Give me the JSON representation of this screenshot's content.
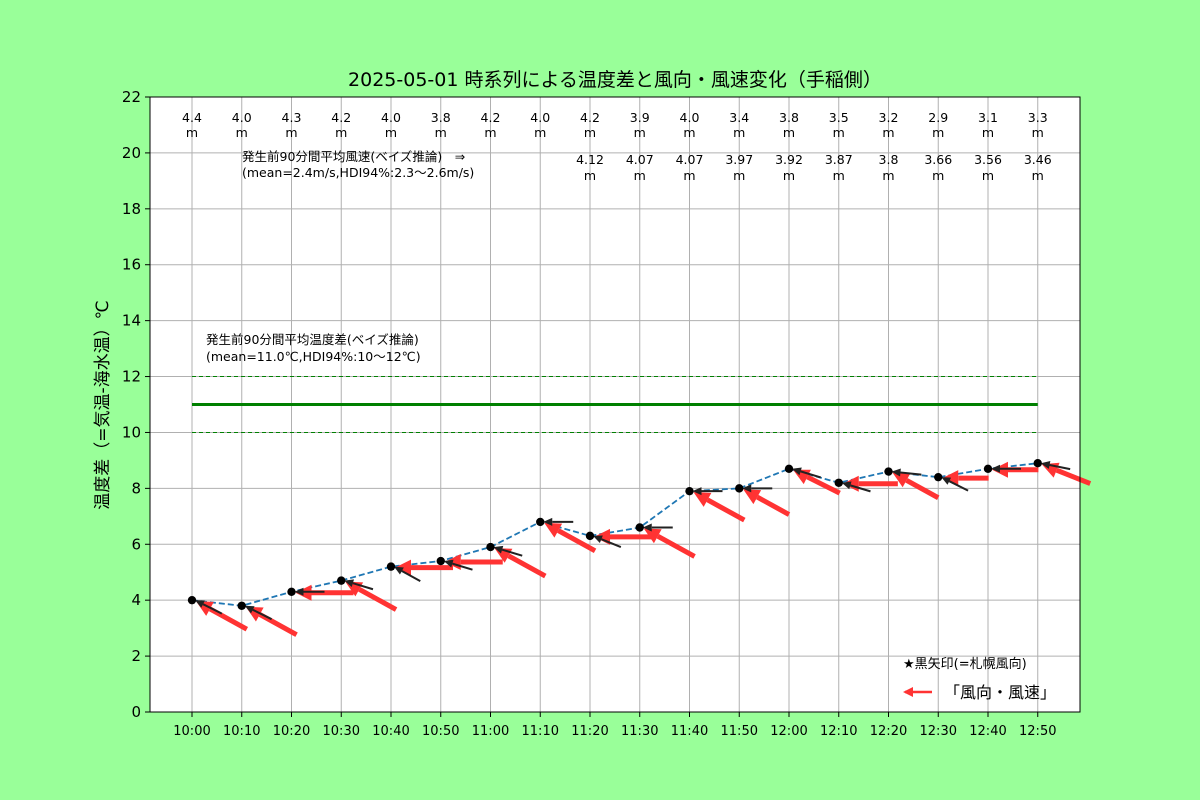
{
  "colors": {
    "background": "#99ff99",
    "plot_background": "#ffffff",
    "grid": "#b0b0b0",
    "temperature_line": "#1f77b4",
    "mean_line": "#008000",
    "wind_arrow": "#ff3333",
    "sapporo_arrow": "#222222"
  },
  "chart_data": {
    "type": "line",
    "title": "2025-05-01 時系列による温度差と風向・風速変化（手稲側）",
    "ylabel": "温度差（=気温-海水温）℃",
    "xlabel": "",
    "ylim": [
      0,
      22
    ],
    "yticks": [
      "0",
      "2",
      "4",
      "6",
      "8",
      "10",
      "12",
      "14",
      "16",
      "18",
      "20",
      "22"
    ],
    "grid": true,
    "x": [
      "10:00",
      "10:10",
      "10:20",
      "10:30",
      "10:40",
      "10:50",
      "11:00",
      "11:10",
      "11:20",
      "11:30",
      "11:40",
      "11:50",
      "12:00",
      "12:10",
      "12:20",
      "12:30",
      "12:40",
      "12:50"
    ],
    "series": [
      {
        "values": [
          4.0,
          3.8,
          4.3,
          4.7,
          5.2,
          5.4,
          5.9,
          6.8,
          6.3,
          6.6,
          7.9,
          8.0,
          8.7,
          8.2,
          8.6,
          8.4,
          8.7,
          8.9
        ]
      }
    ],
    "wind_speed_labels": [
      "4.4",
      "4.0",
      "4.3",
      "4.2",
      "4.0",
      "3.8",
      "4.2",
      "4.0",
      "4.2",
      "3.9",
      "4.0",
      "3.4",
      "3.8",
      "3.5",
      "3.2",
      "2.9",
      "3.1",
      "3.3"
    ],
    "wind_speed_unit": "m",
    "predicted_wind_labels": [
      "4.12",
      "4.07",
      "4.07",
      "3.97",
      "3.92",
      "3.87",
      "3.8",
      "3.66",
      "3.56",
      "3.46"
    ],
    "predicted_start_index": 8,
    "wind_arrows_red": [
      {
        "dx": 1.0,
        "dy": -0.55,
        "len": 1.0
      },
      {
        "dx": 1.0,
        "dy": -0.55,
        "len": 1.0
      },
      {
        "dx": 1.0,
        "dy": 0.0,
        "len": 1.0
      },
      {
        "dx": 1.0,
        "dy": -0.55,
        "len": 1.0
      },
      {
        "dx": 1.0,
        "dy": 0.0,
        "len": 1.0
      },
      {
        "dx": 1.0,
        "dy": 0.0,
        "len": 1.0
      },
      {
        "dx": 1.0,
        "dy": -0.55,
        "len": 1.0
      },
      {
        "dx": 1.0,
        "dy": -0.55,
        "len": 1.0
      },
      {
        "dx": 1.0,
        "dy": 0.0,
        "len": 1.0
      },
      {
        "dx": 1.0,
        "dy": -0.55,
        "len": 1.0
      },
      {
        "dx": 1.0,
        "dy": -0.55,
        "len": 1.0
      },
      {
        "dx": 1.0,
        "dy": -0.55,
        "len": 0.9
      },
      {
        "dx": 1.0,
        "dy": -0.5,
        "len": 0.9
      },
      {
        "dx": 1.0,
        "dy": 0.0,
        "len": 0.95
      },
      {
        "dx": 1.0,
        "dy": -0.55,
        "len": 0.9
      },
      {
        "dx": 1.0,
        "dy": 0.0,
        "len": 0.8
      },
      {
        "dx": 1.0,
        "dy": 0.0,
        "len": 0.8
      },
      {
        "dx": 1.0,
        "dy": -0.4,
        "len": 0.9
      }
    ],
    "wind_arrows_black": [
      {
        "dx": 1.0,
        "dy": -0.5
      },
      {
        "dx": 1.0,
        "dy": -0.5
      },
      {
        "dx": 1.0,
        "dy": 0.0
      },
      {
        "dx": 1.0,
        "dy": -0.3
      },
      {
        "dx": 1.0,
        "dy": -0.55
      },
      {
        "dx": 1.0,
        "dy": -0.3
      },
      {
        "dx": 1.0,
        "dy": -0.3
      },
      {
        "dx": 1.0,
        "dy": 0.0
      },
      {
        "dx": 1.0,
        "dy": -0.4
      },
      {
        "dx": 1.0,
        "dy": 0.0
      },
      {
        "dx": 1.0,
        "dy": 0.0
      },
      {
        "dx": 1.0,
        "dy": 0.0
      },
      {
        "dx": 1.0,
        "dy": -0.3
      },
      {
        "dx": 1.0,
        "dy": -0.3
      },
      {
        "dx": 1.0,
        "dy": -0.1
      },
      {
        "dx": 1.0,
        "dy": -0.5
      },
      {
        "dx": 1.0,
        "dy": 0.0
      },
      {
        "dx": 1.0,
        "dy": -0.2
      }
    ],
    "bayes_temp": {
      "mean": 11.0,
      "hdi_low": 10.0,
      "hdi_high": 12.0,
      "label_line1": "発生前90分間平均温度差(ベイズ推論)",
      "label_line2": "(mean=11.0℃,HDI94%:10〜12℃)"
    },
    "bayes_wind": {
      "label_line1": "発生前90分間平均風速(ベイズ推論)　⇒",
      "label_line2": "(mean=2.4m/s,HDI94%:2.3〜2.6m/s)"
    },
    "legend": {
      "note": "★黒矢印(=札幌風向)",
      "entry": "「風向・風速」",
      "position": "bottom-right"
    }
  }
}
